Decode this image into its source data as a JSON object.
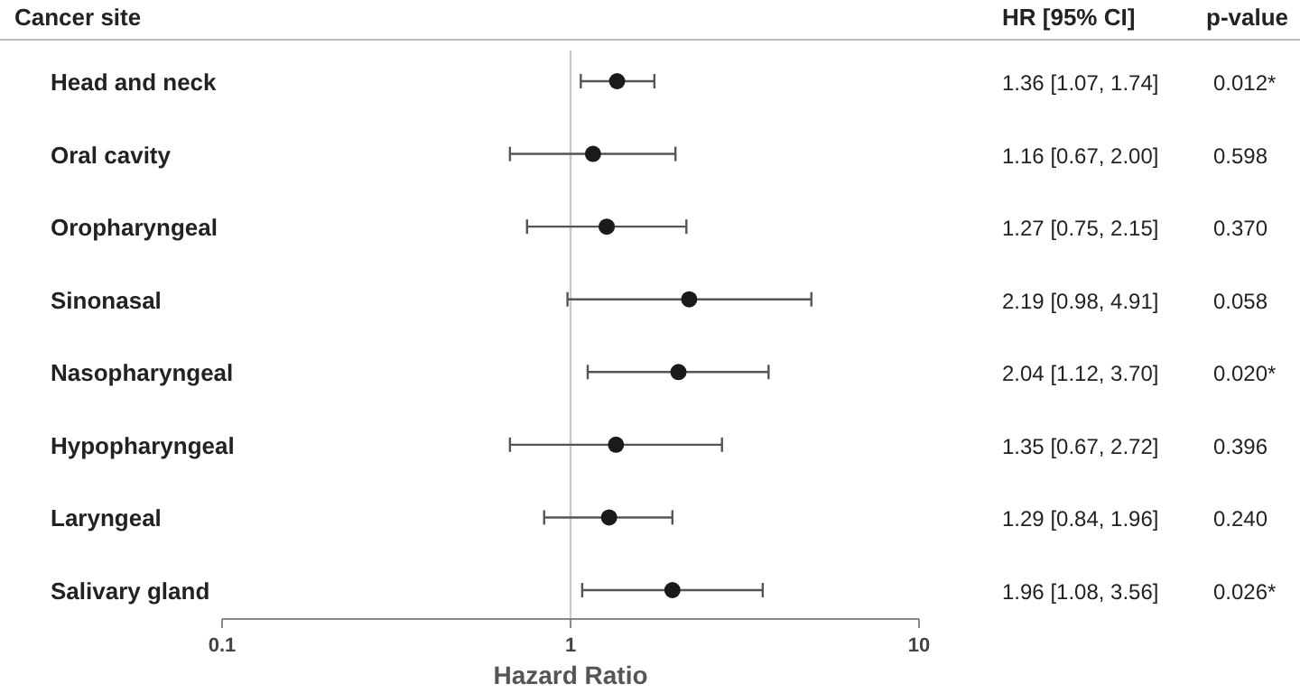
{
  "chart_data": {
    "type": "scatter",
    "orientation": "horizontal",
    "ylabel": "Cancer site",
    "xlabel": "Hazard Ratio",
    "categories": [
      "Head and neck",
      "Oral cavity",
      "Oropharyngeal",
      "Sinonasal",
      "Nasopharyngeal",
      "Hypopharyngeal",
      "Laryngeal",
      "Salivary gland"
    ],
    "values": [
      1.36,
      1.16,
      1.27,
      2.19,
      2.04,
      1.35,
      1.29,
      1.96
    ],
    "errors": [
      [
        1.07,
        1.74
      ],
      [
        0.67,
        2.0
      ],
      [
        0.75,
        2.15
      ],
      [
        0.98,
        4.91
      ],
      [
        1.12,
        3.7
      ],
      [
        0.67,
        2.72
      ],
      [
        0.84,
        1.96
      ],
      [
        1.08,
        3.56
      ]
    ],
    "annotations": [
      "HR [95% CI]",
      "p-value",
      "1.36 [1.07, 1.74]",
      "1.16 [0.67, 2.00]",
      "1.27 [0.75, 2.15]",
      "2.19 [0.98, 4.91]",
      "2.04 [1.12, 3.70]",
      "1.35 [0.67, 2.72]",
      "1.29 [0.84, 1.96]",
      "1.96 [1.08, 3.56]",
      "0.012*",
      "0.598",
      "0.370",
      "0.058",
      "0.020*",
      "0.396",
      "0.240",
      "0.026*"
    ],
    "log": "x",
    "xlim": [
      0.1,
      10
    ],
    "xticks": [
      0.1,
      1,
      10
    ],
    "ref_lines": [
      {
        "axis": "x",
        "value": 1,
        "color": "#c8c8c8"
      }
    ],
    "color": "#1a1a1a",
    "marker": "circle",
    "grid": false
  }
}
